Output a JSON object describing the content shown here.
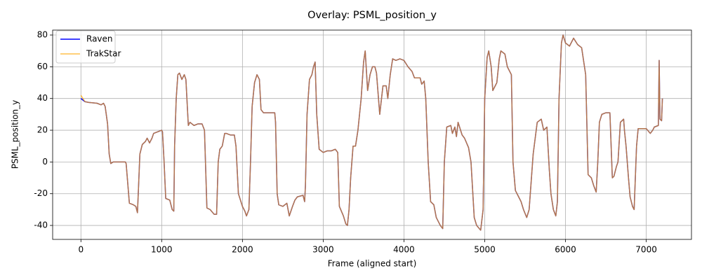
{
  "chart_data": {
    "type": "line",
    "title": "Overlay: PSML_position_y",
    "x_label": "Frame (aligned start)",
    "y_label": "PSML_position_y",
    "x": [
      0,
      50,
      100,
      200,
      250,
      280,
      300,
      330,
      350,
      370,
      400,
      450,
      550,
      560,
      600,
      650,
      680,
      700,
      710,
      730,
      760,
      800,
      820,
      850,
      880,
      900,
      950,
      1000,
      1010,
      1030,
      1050,
      1100,
      1130,
      1150,
      1160,
      1180,
      1200,
      1220,
      1250,
      1280,
      1300,
      1330,
      1350,
      1400,
      1450,
      1500,
      1530,
      1560,
      1600,
      1650,
      1680,
      1700,
      1720,
      1750,
      1780,
      1800,
      1850,
      1900,
      1920,
      1950,
      2000,
      2030,
      2050,
      2080,
      2100,
      2120,
      2150,
      2180,
      2210,
      2230,
      2260,
      2350,
      2400,
      2410,
      2430,
      2450,
      2500,
      2550,
      2580,
      2620,
      2650,
      2680,
      2750,
      2770,
      2780,
      2800,
      2830,
      2860,
      2880,
      2900,
      2920,
      2950,
      3000,
      3050,
      3100,
      3150,
      3180,
      3200,
      3250,
      3280,
      3300,
      3320,
      3340,
      3370,
      3400,
      3430,
      3470,
      3500,
      3520,
      3550,
      3580,
      3610,
      3640,
      3660,
      3700,
      3740,
      3780,
      3800,
      3830,
      3860,
      3900,
      3950,
      4000,
      4050,
      4100,
      4130,
      4200,
      4220,
      4250,
      4270,
      4300,
      4330,
      4370,
      4400,
      4450,
      4480,
      4500,
      4530,
      4580,
      4600,
      4630,
      4650,
      4670,
      4720,
      4750,
      4800,
      4830,
      4870,
      4900,
      4950,
      4980,
      5000,
      5030,
      5050,
      5080,
      5100,
      5150,
      5180,
      5200,
      5250,
      5280,
      5330,
      5350,
      5380,
      5420,
      5450,
      5480,
      5520,
      5550,
      5600,
      5650,
      5700,
      5730,
      5770,
      5800,
      5820,
      5850,
      5880,
      5900,
      5920,
      5950,
      5970,
      6000,
      6050,
      6100,
      6150,
      6200,
      6250,
      6280,
      6320,
      6350,
      6380,
      6400,
      6420,
      6450,
      6500,
      6550,
      6580,
      6600,
      6630,
      6650,
      6680,
      6720,
      6730,
      6750,
      6780,
      6800,
      6830,
      6850,
      6880,
      6900,
      6950,
      7000,
      7050,
      7080,
      7100,
      7150,
      7160,
      7170,
      7190,
      7200
    ],
    "series": [
      {
        "name": "Raven",
        "color": "#0000ff",
        "alpha": 1,
        "values": [
          40,
          38,
          37.5,
          37,
          36,
          37,
          35,
          24,
          5,
          -1,
          0,
          0,
          0,
          -1,
          -26,
          -27,
          -28,
          -32,
          -20,
          5,
          11,
          13,
          15,
          12,
          15,
          18,
          19,
          20,
          19,
          0,
          -23,
          -24,
          -30,
          -31,
          10,
          40,
          55,
          56,
          52,
          55,
          52,
          23,
          25,
          23,
          24,
          24,
          20,
          -29,
          -30,
          -33,
          -33,
          0,
          8,
          10,
          18,
          18,
          17,
          17,
          10,
          -20,
          -28,
          -31,
          -34,
          -30,
          0,
          35,
          50,
          55,
          52,
          33,
          31,
          31,
          31,
          25,
          -20,
          -27,
          -28,
          -26,
          -34,
          -28,
          -24,
          -22,
          -21,
          -25,
          -15,
          30,
          52,
          55,
          60,
          63,
          30,
          8,
          6,
          7,
          7,
          8,
          6,
          -28,
          -34,
          -39,
          -40,
          -30,
          -10,
          10,
          10,
          20,
          40,
          63,
          70,
          45,
          55,
          60,
          60,
          56,
          30,
          48,
          48,
          40,
          55,
          65,
          64,
          65,
          64,
          60,
          57,
          53,
          53,
          49,
          51,
          40,
          0,
          -25,
          -27,
          -35,
          -40,
          -42,
          0,
          22,
          23,
          18,
          22,
          16,
          25,
          17,
          15,
          9,
          0,
          -35,
          -40,
          -43,
          -30,
          40,
          66,
          70,
          60,
          45,
          50,
          65,
          70,
          68,
          60,
          55,
          0,
          -18,
          -22,
          -25,
          -30,
          -35,
          -30,
          5,
          25,
          27,
          20,
          22,
          -5,
          -20,
          -30,
          -34,
          -25,
          40,
          75,
          80,
          75,
          73,
          78,
          74,
          72,
          55,
          -8,
          -10,
          -15,
          -19,
          0,
          25,
          30,
          31,
          31,
          -10,
          -9,
          -3,
          0,
          25,
          27,
          20,
          10,
          -10,
          -22,
          -28,
          -30,
          10,
          21,
          21,
          21,
          18,
          20,
          22,
          23,
          64,
          27,
          26,
          40
        ]
      },
      {
        "name": "TrakStar",
        "color": "#ffa500",
        "alpha": 0.7,
        "values": [
          42,
          38,
          37.5,
          37,
          36,
          37,
          35,
          24,
          5,
          -1,
          0,
          0,
          0,
          -1,
          -26,
          -27,
          -28,
          -32,
          -20,
          5,
          11,
          13,
          15,
          12,
          15,
          18,
          19,
          20,
          19,
          0,
          -23,
          -24,
          -30,
          -31,
          10,
          40,
          55,
          56,
          52,
          55,
          52,
          23,
          25,
          23,
          24,
          24,
          20,
          -29,
          -30,
          -33,
          -33,
          0,
          8,
          10,
          18,
          18,
          17,
          17,
          10,
          -20,
          -28,
          -31,
          -34,
          -30,
          0,
          35,
          50,
          55,
          52,
          33,
          31,
          31,
          31,
          25,
          -20,
          -27,
          -28,
          -26,
          -34,
          -28,
          -24,
          -22,
          -21,
          -25,
          -15,
          30,
          52,
          55,
          60,
          63,
          30,
          8,
          6,
          7,
          7,
          8,
          6,
          -28,
          -34,
          -39,
          -40,
          -30,
          -10,
          10,
          10,
          20,
          40,
          63,
          70,
          45,
          55,
          60,
          60,
          56,
          30,
          48,
          48,
          40,
          55,
          65,
          64,
          65,
          64,
          60,
          57,
          53,
          53,
          49,
          51,
          40,
          0,
          -25,
          -27,
          -35,
          -40,
          -42,
          0,
          22,
          23,
          18,
          22,
          16,
          25,
          17,
          15,
          9,
          0,
          -35,
          -40,
          -43,
          -30,
          40,
          66,
          70,
          60,
          45,
          50,
          65,
          70,
          68,
          60,
          55,
          0,
          -18,
          -22,
          -25,
          -30,
          -35,
          -30,
          5,
          25,
          27,
          20,
          22,
          -5,
          -20,
          -30,
          -34,
          -25,
          40,
          75,
          80,
          75,
          73,
          78,
          74,
          72,
          55,
          -8,
          -10,
          -15,
          -19,
          0,
          25,
          30,
          31,
          31,
          -10,
          -9,
          -3,
          0,
          25,
          27,
          20,
          10,
          -10,
          -22,
          -28,
          -30,
          10,
          21,
          21,
          21,
          18,
          20,
          22,
          23,
          64,
          27,
          26,
          40
        ]
      }
    ],
    "xlim": [
      -350,
      7560
    ],
    "ylim": [
      -48.8,
      83.1
    ],
    "xticks": [
      0,
      1000,
      2000,
      3000,
      4000,
      5000,
      6000,
      7000
    ],
    "yticks": [
      -40,
      -20,
      0,
      20,
      40,
      60,
      80
    ],
    "grid": true,
    "legend": "upper left"
  }
}
